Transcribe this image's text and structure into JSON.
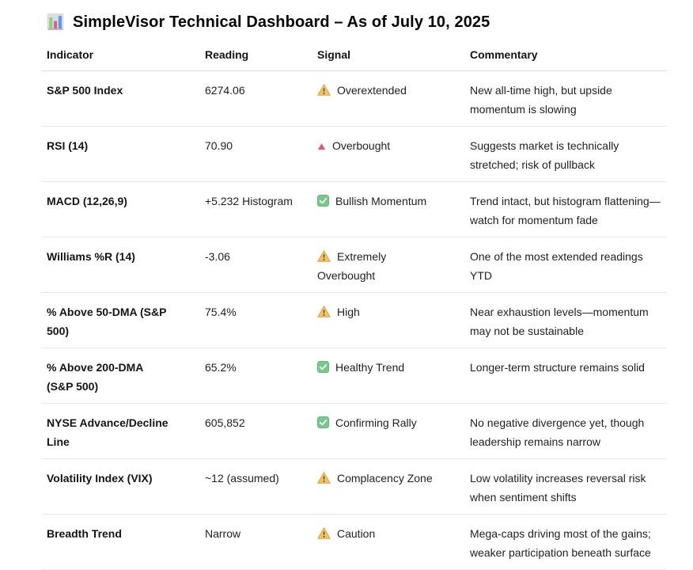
{
  "header": {
    "title": "SimpleVisor Technical Dashboard – As of July 10, 2025",
    "icon": "bar-chart-icon"
  },
  "table": {
    "columns": [
      "Indicator",
      "Reading",
      "Signal",
      "Commentary"
    ],
    "rows": [
      {
        "indicator": "S&P 500 Index",
        "reading": "6274.06",
        "signal_icon": "warning",
        "signal": "Overextended",
        "commentary": "New all-time high, but upside momentum is slowing"
      },
      {
        "indicator": "RSI (14)",
        "reading": "70.90",
        "signal_icon": "up-triangle",
        "signal": "Overbought",
        "commentary": "Suggests market is technically stretched; risk of pullback"
      },
      {
        "indicator": "MACD (12,26,9)",
        "reading": "+5.232 Histogram",
        "signal_icon": "check",
        "signal": "Bullish Momentum",
        "commentary": "Trend intact, but histogram flattening—watch for momentum fade"
      },
      {
        "indicator": "Williams %R (14)",
        "reading": "-3.06",
        "signal_icon": "warning",
        "signal": "Extremely Overbought",
        "commentary": "One of the most extended readings YTD"
      },
      {
        "indicator": "% Above 50-DMA (S&P 500)",
        "reading": "75.4%",
        "signal_icon": "warning",
        "signal": "High",
        "commentary": "Near exhaustion levels—momentum may not be sustainable"
      },
      {
        "indicator": "% Above 200-DMA (S&P 500)",
        "reading": "65.2%",
        "signal_icon": "check",
        "signal": "Healthy Trend",
        "commentary": "Longer-term structure remains solid"
      },
      {
        "indicator": "NYSE Advance/Decline Line",
        "reading": "605,852",
        "signal_icon": "check",
        "signal": "Confirming Rally",
        "commentary": "No negative divergence yet, though leadership remains narrow"
      },
      {
        "indicator": "Volatility Index (VIX)",
        "reading": "~12 (assumed)",
        "signal_icon": "warning",
        "signal": "Complacency Zone",
        "commentary": "Low volatility increases reversal risk when sentiment shifts"
      },
      {
        "indicator": "Breadth Trend",
        "reading": "Narrow",
        "signal_icon": "warning",
        "signal": "Caution",
        "commentary": "Mega-caps driving most of the gains; weaker participation beneath surface"
      }
    ]
  },
  "colors": {
    "warning_fill": "#F3C262",
    "warning_border": "#E2A03F",
    "warning_mark": "#5C4813",
    "check_fill": "#76C98B",
    "check_border": "#5FBA78",
    "check_mark": "#FFFFFF",
    "overbought_fill": "#DD5B7B",
    "chart_green": "#97D077",
    "chart_pink": "#E0628A",
    "chart_blue": "#5D9CEC",
    "chart_panel": "#DCDCE1"
  }
}
